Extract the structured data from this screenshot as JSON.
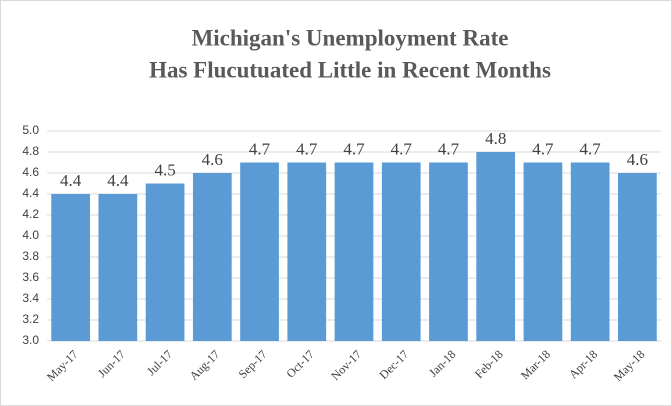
{
  "chart_data": {
    "type": "bar",
    "title": [
      "Michigan's Unemployment Rate",
      "Has Flucutuated Little in  Recent Months"
    ],
    "categories": [
      "May-17",
      "Jun-17",
      "Jul-17",
      "Aug-17",
      "Sep-17",
      "Oct-17",
      "Nov-17",
      "Dec-17",
      "Jan-18",
      "Feb-18",
      "Mar-18",
      "Apr-18",
      "May-18"
    ],
    "values": [
      4.4,
      4.4,
      4.5,
      4.6,
      4.7,
      4.7,
      4.7,
      4.7,
      4.7,
      4.8,
      4.7,
      4.7,
      4.6
    ],
    "color": "#5b9bd5",
    "ylim": [
      3.0,
      5.0
    ],
    "yticks": [
      {
        "value": 3.0,
        "label": "3.0"
      },
      3.2,
      3.4,
      3.6,
      3.8,
      {
        "value": 4.0,
        "label": "4.0"
      },
      4.2,
      4.4,
      4.6,
      4.8,
      {
        "value": 5.0,
        "label": "5.0"
      }
    ],
    "grid": true
  }
}
